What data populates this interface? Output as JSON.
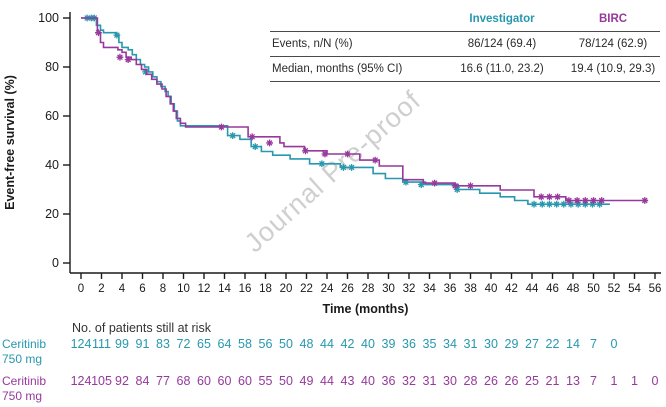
{
  "watermark": "Journal Pre-proof",
  "colors": {
    "investigator": "#2798AE",
    "birc": "#96399B",
    "axis": "#1a1a1a",
    "table_text": "#2b2b2b",
    "watermark": "#c7c7c7"
  },
  "summary_table": {
    "columns": [
      "",
      "Investigator",
      "BIRC"
    ],
    "rows": [
      {
        "label": "Events, n/N (%)",
        "investigator": "86/124 (69.4)",
        "birc": "78/124 (62.9)"
      },
      {
        "label": "Median, months (95% CI)",
        "investigator": "16.6 (11.0, 23.2)",
        "birc": "19.4 (10.9, 29.3)"
      }
    ]
  },
  "chart_data": {
    "type": "line",
    "subtype": "kaplan-meier-step",
    "xlabel": "Time (months)",
    "ylabel": "Event-free survival (%)",
    "xlim": [
      0,
      56
    ],
    "ylim": [
      0,
      100
    ],
    "xticks": [
      0,
      2,
      4,
      6,
      8,
      10,
      12,
      14,
      16,
      18,
      20,
      22,
      24,
      26,
      28,
      30,
      32,
      34,
      36,
      38,
      40,
      42,
      44,
      46,
      48,
      50,
      52,
      54,
      56
    ],
    "yticks": [
      0,
      20,
      40,
      60,
      80,
      100
    ],
    "grid": false,
    "series": [
      {
        "name": "Investigator",
        "color": "#2798AE",
        "steps": [
          [
            0,
            100
          ],
          [
            1.5,
            97
          ],
          [
            1.9,
            95
          ],
          [
            2.2,
            94
          ],
          [
            3.4,
            93
          ],
          [
            3.7,
            90
          ],
          [
            4.0,
            88
          ],
          [
            4.6,
            87
          ],
          [
            5.0,
            85
          ],
          [
            5.4,
            83
          ],
          [
            5.8,
            81
          ],
          [
            6.2,
            80
          ],
          [
            6.6,
            78
          ],
          [
            7.0,
            76
          ],
          [
            7.4,
            74
          ],
          [
            7.8,
            72
          ],
          [
            8.2,
            70
          ],
          [
            8.5,
            68
          ],
          [
            8.8,
            65
          ],
          [
            9.1,
            62
          ],
          [
            9.4,
            58
          ],
          [
            9.7,
            56
          ],
          [
            14.3,
            52
          ],
          [
            15.5,
            50.5
          ],
          [
            16.6,
            47.5
          ],
          [
            17.6,
            45.5
          ],
          [
            18.7,
            44
          ],
          [
            20.4,
            42.5
          ],
          [
            22.3,
            40.5
          ],
          [
            25.3,
            39
          ],
          [
            28.5,
            36.5
          ],
          [
            29.7,
            34.5
          ],
          [
            31.4,
            33
          ],
          [
            33.6,
            32
          ],
          [
            36.8,
            30
          ],
          [
            38.9,
            28.5
          ],
          [
            40.9,
            27
          ],
          [
            42.3,
            25.5
          ],
          [
            43.6,
            24
          ],
          [
            51.6,
            24
          ]
        ],
        "censors": [
          [
            0.6,
            100
          ],
          [
            1.0,
            100
          ],
          [
            1.3,
            100
          ],
          [
            3.5,
            93
          ],
          [
            6.3,
            78
          ],
          [
            14.8,
            52
          ],
          [
            17.0,
            47.5
          ],
          [
            23.5,
            40.5
          ],
          [
            25.6,
            39
          ],
          [
            26.4,
            39
          ],
          [
            31.7,
            33
          ],
          [
            33.2,
            32
          ],
          [
            36.7,
            30
          ],
          [
            44.2,
            24
          ],
          [
            45.0,
            24
          ],
          [
            45.7,
            24
          ],
          [
            46.4,
            24
          ],
          [
            47.1,
            24
          ],
          [
            47.8,
            24
          ],
          [
            48.5,
            24
          ],
          [
            49.2,
            24
          ],
          [
            49.9,
            24
          ],
          [
            50.6,
            24
          ]
        ]
      },
      {
        "name": "BIRC",
        "color": "#96399B",
        "steps": [
          [
            0,
            100
          ],
          [
            1.6,
            94
          ],
          [
            1.9,
            90
          ],
          [
            2.2,
            88
          ],
          [
            3.6,
            87
          ],
          [
            4.0,
            86
          ],
          [
            4.4,
            84
          ],
          [
            4.9,
            83
          ],
          [
            5.4,
            81
          ],
          [
            5.9,
            79
          ],
          [
            6.4,
            77
          ],
          [
            6.9,
            75
          ],
          [
            7.4,
            73
          ],
          [
            7.9,
            71
          ],
          [
            8.3,
            68
          ],
          [
            8.7,
            65
          ],
          [
            9.0,
            62
          ],
          [
            9.3,
            59
          ],
          [
            9.7,
            57
          ],
          [
            10.2,
            55.5
          ],
          [
            16.3,
            51.5
          ],
          [
            19.4,
            49
          ],
          [
            19.8,
            47.5
          ],
          [
            21.8,
            45.8
          ],
          [
            24.0,
            44.5
          ],
          [
            27.2,
            42
          ],
          [
            29.1,
            39.6
          ],
          [
            31.4,
            34
          ],
          [
            33.4,
            32.6
          ],
          [
            36.5,
            31.5
          ],
          [
            40.9,
            29.8
          ],
          [
            44.2,
            27
          ],
          [
            47.3,
            25.5
          ],
          [
            55.3,
            25.5
          ]
        ],
        "censors": [
          [
            1.7,
            94
          ],
          [
            3.8,
            84
          ],
          [
            4.6,
            83
          ],
          [
            13.7,
            55.5
          ],
          [
            16.7,
            51.5
          ],
          [
            18.4,
            49
          ],
          [
            21.9,
            45.8
          ],
          [
            23.8,
            44.5
          ],
          [
            26.0,
            44.5
          ],
          [
            28.7,
            42
          ],
          [
            34.5,
            32.6
          ],
          [
            36.5,
            31.5
          ],
          [
            38.0,
            31.5
          ],
          [
            44.9,
            27
          ],
          [
            45.7,
            27
          ],
          [
            46.5,
            27
          ],
          [
            47.6,
            25.5
          ],
          [
            48.4,
            25.5
          ],
          [
            49.2,
            25.5
          ],
          [
            50.0,
            25.5
          ],
          [
            50.8,
            25.5
          ],
          [
            55.0,
            25.5
          ]
        ]
      }
    ]
  },
  "risk_table": {
    "title": "No. of patients still at risk",
    "rows": [
      {
        "label_line1": "Ceritinib",
        "label_line2": "750 mg",
        "color": "#2798AE",
        "counts": [
          124,
          111,
          99,
          91,
          83,
          72,
          65,
          64,
          58,
          56,
          50,
          48,
          44,
          42,
          40,
          39,
          36,
          35,
          34,
          31,
          30,
          29,
          27,
          22,
          14,
          7,
          0
        ]
      },
      {
        "label_line1": "Ceritinib",
        "label_line2": "750 mg",
        "color": "#96399B",
        "counts": [
          124,
          105,
          92,
          84,
          77,
          68,
          60,
          60,
          60,
          55,
          50,
          49,
          44,
          43,
          40,
          36,
          32,
          31,
          30,
          28,
          26,
          26,
          25,
          21,
          13,
          7,
          1,
          1,
          0
        ]
      }
    ]
  }
}
